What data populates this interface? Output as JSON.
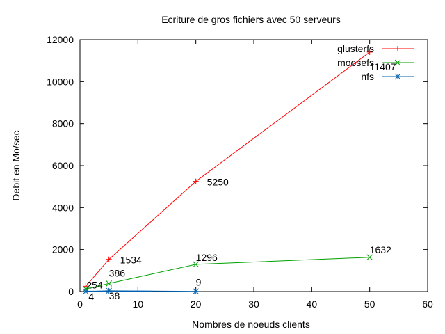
{
  "chart_data": {
    "type": "line",
    "title": "Ecriture de gros fichiers avec 50 serveurs",
    "xlabel": "Nombres de noeuds clients",
    "ylabel": "Debit en Mo/sec",
    "xlim": [
      0,
      60
    ],
    "ylim": [
      0,
      12000
    ],
    "x_ticks": [
      0,
      10,
      20,
      30,
      40,
      50,
      60
    ],
    "y_ticks": [
      0,
      2000,
      4000,
      6000,
      8000,
      10000,
      12000
    ],
    "legend_position": "top-right",
    "grid": false,
    "series": [
      {
        "name": "glusterfs",
        "color": "#ff0000",
        "marker": "plus",
        "x": [
          1,
          5,
          20,
          50
        ],
        "y": [
          254,
          1534,
          5250,
          11407
        ],
        "labels": [
          "254",
          "1534",
          "5250",
          "11407"
        ]
      },
      {
        "name": "moosefs",
        "color": "#00a000",
        "marker": "cross",
        "x": [
          1,
          5,
          20,
          50
        ],
        "y": [
          120,
          386,
          1296,
          1632
        ],
        "labels": [
          "",
          "386",
          "1296",
          "1632"
        ]
      },
      {
        "name": "nfs",
        "color": "#0060ad",
        "marker": "star",
        "x": [
          1,
          5,
          20
        ],
        "y": [
          4,
          38,
          9
        ],
        "labels": [
          "4",
          "38",
          "9"
        ]
      }
    ]
  }
}
